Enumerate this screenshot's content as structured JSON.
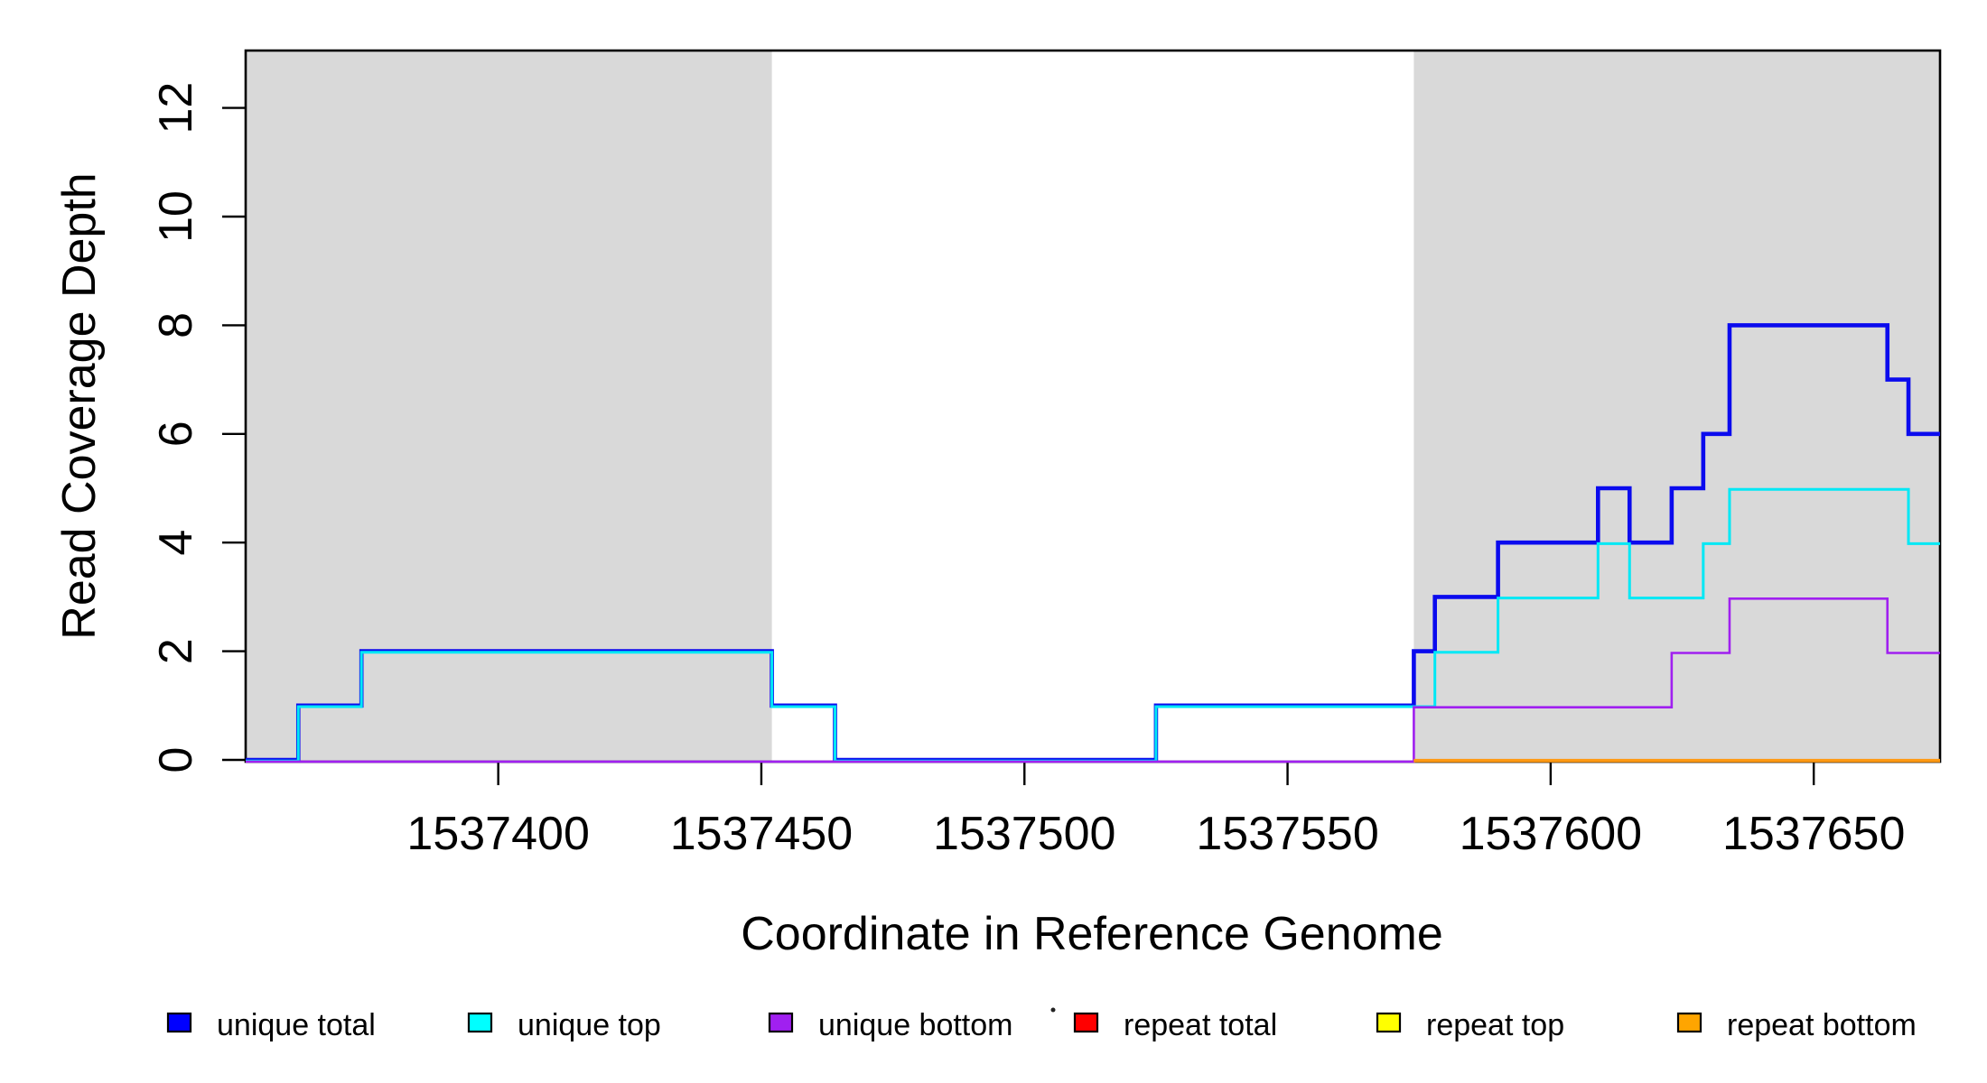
{
  "figure": {
    "y_axis": {
      "title": "Read Coverage Depth",
      "ticks": [
        0,
        2,
        4,
        6,
        8,
        10,
        12
      ]
    },
    "x_axis": {
      "title": "Coordinate in Reference Genome",
      "ticks": [
        1537400,
        1537450,
        1537500,
        1537550,
        1537600,
        1537650
      ]
    }
  },
  "chart_data": {
    "type": "line",
    "subtype": "step-after",
    "title": "",
    "xlabel": "Coordinate in Reference Genome",
    "ylabel": "Read Coverage Depth",
    "xlim": [
      1537352,
      1537674
    ],
    "ylim": [
      0,
      13.1
    ],
    "grid": false,
    "shaded_repeat_regions": [
      {
        "x0": 1537352,
        "x1": 1537452,
        "color": "#D9D9D9"
      },
      {
        "x0": 1537574,
        "x1": 1537674,
        "color": "#D9D9D9"
      }
    ],
    "series": [
      {
        "name": "unique total",
        "color": "#0B0BEE",
        "points": [
          [
            1537352,
            0
          ],
          [
            1537362,
            1
          ],
          [
            1537374,
            2
          ],
          [
            1537452,
            1
          ],
          [
            1537464,
            0
          ],
          [
            1537525,
            1
          ],
          [
            1537574,
            2
          ],
          [
            1537578,
            3
          ],
          [
            1537590,
            4
          ],
          [
            1537609,
            5
          ],
          [
            1537615,
            4
          ],
          [
            1537623,
            5
          ],
          [
            1537629,
            6
          ],
          [
            1537634,
            8
          ],
          [
            1537664,
            7
          ],
          [
            1537668,
            6
          ],
          [
            1537674,
            6
          ]
        ]
      },
      {
        "name": "unique top",
        "color": "#00E8F5",
        "points": [
          [
            1537352,
            0
          ],
          [
            1537362,
            1
          ],
          [
            1537374,
            2
          ],
          [
            1537452,
            1
          ],
          [
            1537464,
            0
          ],
          [
            1537525,
            1
          ],
          [
            1537578,
            2
          ],
          [
            1537590,
            3
          ],
          [
            1537609,
            4
          ],
          [
            1537615,
            3
          ],
          [
            1537629,
            4
          ],
          [
            1537634,
            5
          ],
          [
            1537668,
            4
          ],
          [
            1537674,
            4
          ]
        ]
      },
      {
        "name": "unique bottom",
        "color": "#A020F0",
        "points": [
          [
            1537352,
            0
          ],
          [
            1537574,
            1
          ],
          [
            1537623,
            2
          ],
          [
            1537634,
            3
          ],
          [
            1537664,
            2
          ],
          [
            1537674,
            2
          ]
        ]
      },
      {
        "name": "repeat total",
        "color": "#FF0000",
        "points": [
          [
            1537574,
            0
          ],
          [
            1537674,
            0
          ]
        ]
      },
      {
        "name": "repeat top",
        "color": "#FFFF00",
        "points": [
          [
            1537574,
            0
          ],
          [
            1537674,
            0
          ]
        ]
      },
      {
        "name": "repeat bottom",
        "color": "#FF9912",
        "points": [
          [
            1537574,
            0
          ],
          [
            1537674,
            0
          ]
        ]
      }
    ],
    "legend": {
      "position": "bottom",
      "entries": [
        {
          "label": "unique total",
          "color": "#0000FF"
        },
        {
          "label": "unique top",
          "color": "#00FFFF"
        },
        {
          "label": "unique bottom",
          "color": "#A020F0"
        },
        {
          "label": "repeat total",
          "color": "#FF0000"
        },
        {
          "label": "repeat top",
          "color": "#FFFF00"
        },
        {
          "label": "repeat bottom",
          "color": "#FFA500"
        }
      ]
    }
  }
}
